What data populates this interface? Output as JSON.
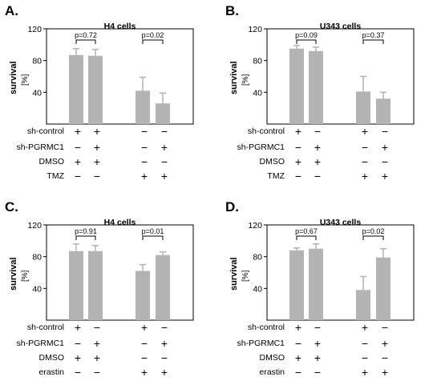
{
  "panels": [
    {
      "letter": "A.",
      "title": "H4 cells",
      "ylabel": "survival",
      "yunit": "[%]",
      "conditions": [
        "sh-control",
        "sh-PGRMC1",
        "DMSO",
        "TMZ"
      ],
      "signs": [
        [
          "+",
          "+",
          "−",
          "−"
        ],
        [
          "−",
          "+",
          "−",
          "+"
        ],
        [
          "+",
          "+",
          "−",
          "−"
        ],
        [
          "−",
          "−",
          "+",
          "+"
        ]
      ]
    },
    {
      "letter": "B.",
      "title": "U343 cells",
      "ylabel": "survival",
      "yunit": "[%]",
      "conditions": [
        "sh-control",
        "sh-PGRMC1",
        "DMSO",
        "TMZ"
      ],
      "signs": [
        [
          "+",
          "−",
          "+",
          "−"
        ],
        [
          "−",
          "+",
          "−",
          "+"
        ],
        [
          "+",
          "+",
          "−",
          "−"
        ],
        [
          "−",
          "−",
          "+",
          "+"
        ]
      ]
    },
    {
      "letter": "C.",
      "title": "H4 cells",
      "ylabel": "survival",
      "yunit": "[%]",
      "conditions": [
        "sh-control",
        "sh-PGRMC1",
        "DMSO",
        "erastin"
      ],
      "signs": [
        [
          "+",
          "−",
          "+",
          "−"
        ],
        [
          "−",
          "+",
          "−",
          "+"
        ],
        [
          "+",
          "+",
          "−",
          "−"
        ],
        [
          "−",
          "−",
          "+",
          "+"
        ]
      ]
    },
    {
      "letter": "D.",
      "title": "U343 cells",
      "ylabel": "survival",
      "yunit": "[%]",
      "conditions": [
        "sh-control",
        "sh-PGRMC1",
        "DMSO",
        "erastin"
      ],
      "signs": [
        [
          "+",
          "−",
          "+",
          "−"
        ],
        [
          "−",
          "+",
          "−",
          "+"
        ],
        [
          "+",
          "+",
          "−",
          "−"
        ],
        [
          "−",
          "−",
          "+",
          "+"
        ]
      ]
    }
  ],
  "chart_data": [
    {
      "type": "bar",
      "title": "H4 cells",
      "ylabel": "survival [%]",
      "ylim": [
        0,
        120
      ],
      "yticks": [
        40,
        80,
        120
      ],
      "values": [
        87,
        86,
        42,
        26
      ],
      "errors": [
        8,
        8,
        17,
        13
      ],
      "pvalues": [
        {
          "label": "p=0.72",
          "bars": [
            0,
            1
          ]
        },
        {
          "label": "p=0.02",
          "bars": [
            2,
            3
          ]
        }
      ],
      "bar_color": "#b3b3b3"
    },
    {
      "type": "bar",
      "title": "U343 cells",
      "ylabel": "survival [%]",
      "ylim": [
        0,
        120
      ],
      "yticks": [
        40,
        80,
        120
      ],
      "values": [
        95,
        92,
        41,
        32
      ],
      "errors": [
        4,
        5,
        19,
        8
      ],
      "pvalues": [
        {
          "label": "p=0.09",
          "bars": [
            0,
            1
          ]
        },
        {
          "label": "p=0.37",
          "bars": [
            2,
            3
          ]
        }
      ],
      "bar_color": "#b3b3b3"
    },
    {
      "type": "bar",
      "title": "H4 cells",
      "ylabel": "survival [%]",
      "ylim": [
        0,
        120
      ],
      "yticks": [
        40,
        80,
        120
      ],
      "values": [
        87,
        87,
        62,
        82
      ],
      "errors": [
        9,
        7,
        8,
        4
      ],
      "pvalues": [
        {
          "label": "p=0.91",
          "bars": [
            0,
            1
          ]
        },
        {
          "label": "p=0.01",
          "bars": [
            2,
            3
          ]
        }
      ],
      "bar_color": "#b3b3b3"
    },
    {
      "type": "bar",
      "title": "U343 cells",
      "ylabel": "survival [%]",
      "ylim": [
        0,
        120
      ],
      "yticks": [
        40,
        80,
        120
      ],
      "values": [
        88,
        90,
        38,
        79
      ],
      "errors": [
        3,
        6,
        17,
        11
      ],
      "pvalues": [
        {
          "label": "p=0.67",
          "bars": [
            0,
            1
          ]
        },
        {
          "label": "p=0.02",
          "bars": [
            2,
            3
          ]
        }
      ],
      "bar_color": "#b3b3b3"
    }
  ]
}
